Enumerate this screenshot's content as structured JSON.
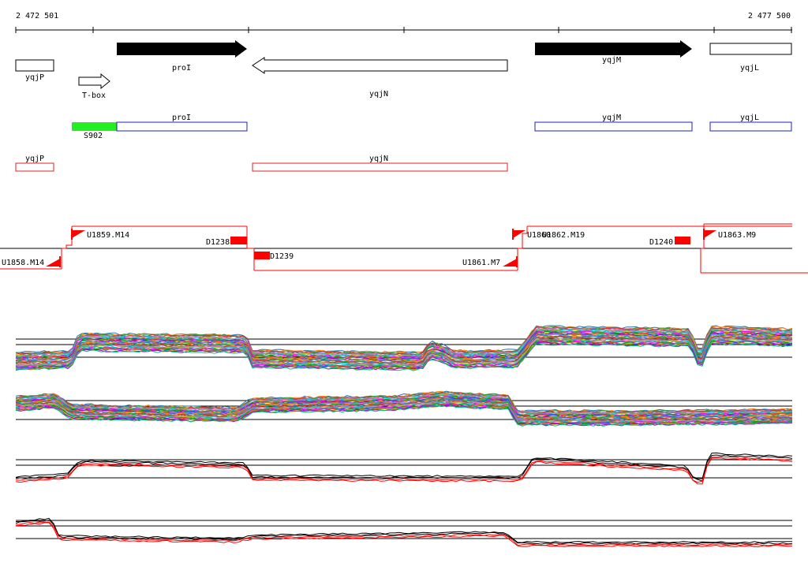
{
  "ruler": {
    "start": "2 472 501",
    "end": "2 477 500"
  },
  "annotation": {
    "proI": "proI",
    "yqjM": "yqjM",
    "yqjL": "yqjL",
    "yqjP": "yqjP",
    "tbox": "T-box",
    "yqjN": "yqjN"
  },
  "transcripts": {
    "s902": "S902",
    "proI": "proI",
    "yqjM": "yqjM",
    "yqjL": "yqjL"
  },
  "antisense": {
    "yqjP": "yqjP",
    "yqjN": "yqjN"
  },
  "segments": {
    "u1859": "U1859.M14",
    "d1238": "D1238",
    "u1858": "U1858.M14",
    "d1239": "D1239",
    "u1861": "U1861.M7",
    "u1860": "U1860",
    "u1862": "U1862.M19",
    "d1240": "D1240",
    "u1863": "U1863.M9"
  },
  "colors": {
    "feature": "#000000",
    "transcript": "#1f1fbf",
    "antisense": "#e02020",
    "segment": "#ff0000",
    "sigma": "#22ee22"
  },
  "profile_palette": [
    "#1f77b4",
    "#ff7f0e",
    "#2ca02c",
    "#d62728",
    "#9467bd",
    "#8c564b",
    "#e377c2",
    "#17becf",
    "#bcbd22",
    "#7f7f7f",
    "#00c0c0",
    "#ff00ff",
    "#00a000",
    "#ff4040",
    "#4040ff",
    "#c0a000",
    "#a000c0",
    "#00c080",
    "#ff8000",
    "#8080ff"
  ]
}
